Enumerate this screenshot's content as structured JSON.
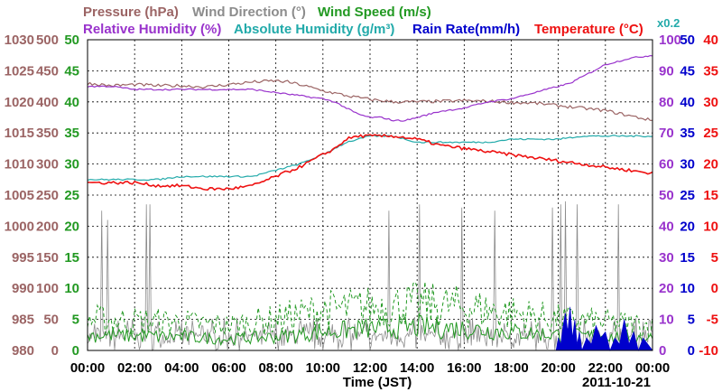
{
  "chart_data": {
    "type": "line",
    "xlabel": "Time (JST)",
    "date_label": "2011-10-21",
    "x_ticks": [
      "00:00",
      "02:00",
      "04:00",
      "06:00",
      "08:00",
      "10:00",
      "12:00",
      "14:00",
      "16:00",
      "18:00",
      "20:00",
      "22:00",
      "00:00"
    ],
    "x_hours": [
      0,
      2,
      4,
      6,
      8,
      10,
      12,
      14,
      16,
      18,
      20,
      22,
      24
    ],
    "grid": true,
    "header_row1": [
      {
        "text": "Pressure (hPa)",
        "color": "#9b6464"
      },
      {
        "text": "Wind Direction (°)",
        "color": "#8c8c8c"
      },
      {
        "text": "Wind Speed (m/s)",
        "color": "#229922"
      }
    ],
    "header_row2": [
      {
        "text": "Relative Humidity (%)",
        "color": "#9933cc"
      },
      {
        "text": "Absolute Humidity (g/m³)",
        "color": "#22aaaa"
      },
      {
        "text": "Rain Rate(mm/h)",
        "color": "#0000cc"
      },
      {
        "text": "Temperature (°C)",
        "color": "#ee1111"
      }
    ],
    "abs_humidity_note": "x0.2",
    "axes": {
      "pressure": {
        "ticks": [
          "1030",
          "1025",
          "1020",
          "1015",
          "1010",
          "1005",
          "1000",
          "995",
          "990",
          "985",
          "980"
        ],
        "range": [
          980,
          1030
        ],
        "color": "#9b6464"
      },
      "wind_dir": {
        "ticks": [
          "500",
          "450",
          "400",
          "350",
          "300",
          "250",
          "200",
          "150",
          "100",
          "50",
          "0"
        ],
        "range": [
          0,
          500
        ],
        "color": "#9b6464"
      },
      "wind_speed": {
        "ticks": [
          "50",
          "45",
          "40",
          "35",
          "30",
          "25",
          "20",
          "15",
          "10",
          "5",
          "0"
        ],
        "range": [
          0,
          50
        ],
        "color": "#229922"
      },
      "humidity": {
        "ticks": [
          "100",
          "90",
          "80",
          "70",
          "60",
          "50",
          "40",
          "30",
          "20",
          "10",
          "0"
        ],
        "range": [
          0,
          100
        ],
        "color": "#9933cc"
      },
      "abs_hum": {
        "ticks": [
          "50",
          "45",
          "40",
          "35",
          "30",
          "25",
          "20",
          "15",
          "10",
          "5",
          "0"
        ],
        "range": [
          0,
          50
        ],
        "color": "#0000cc"
      },
      "temperature": {
        "ticks": [
          "40",
          "35",
          "30",
          "25",
          "20",
          "15",
          "10",
          "5",
          "0",
          "-5",
          "-10"
        ],
        "range": [
          -10,
          40
        ],
        "color": "#ee1111"
      }
    },
    "series": [
      {
        "key": "pressure",
        "axis": "pressure",
        "color": "#9b6464",
        "x": [
          0,
          1,
          2,
          3,
          4,
          5,
          6,
          7,
          8,
          8.5,
          9,
          9.5,
          10,
          11,
          12,
          13,
          14,
          15,
          16,
          17,
          18,
          19,
          20,
          21,
          22,
          23,
          24
        ],
        "y": [
          1023,
          1022.6,
          1022.8,
          1022.6,
          1022.6,
          1022.4,
          1022.8,
          1023.2,
          1023.4,
          1023.2,
          1022.8,
          1022.3,
          1021.8,
          1021,
          1020.4,
          1020,
          1020,
          1020.1,
          1020.2,
          1020.1,
          1019.9,
          1019.8,
          1019.4,
          1019,
          1018.6,
          1017.8,
          1017
        ]
      },
      {
        "key": "rel_humidity",
        "axis": "humidity",
        "color": "#9933cc",
        "x": [
          0,
          1,
          2,
          3,
          4,
          5,
          6,
          7,
          8,
          9,
          10,
          10.5,
          11,
          11.5,
          12,
          12.5,
          13,
          13.5,
          14,
          15,
          16,
          16.5,
          17,
          18,
          18.5,
          19,
          19.5,
          20,
          20.5,
          21,
          21.5,
          22,
          23,
          24
        ],
        "y": [
          85,
          85,
          84,
          84,
          84,
          84,
          84,
          84,
          83,
          82,
          81,
          80,
          78,
          76,
          75,
          75,
          74,
          74,
          75,
          77,
          78,
          79,
          80,
          81,
          82,
          83,
          84,
          85,
          86,
          88,
          90,
          92,
          94,
          95
        ]
      },
      {
        "key": "abs_humidity",
        "axis": "humidity",
        "color": "#22aaaa",
        "x": [
          0,
          1,
          2,
          3,
          4,
          5,
          6,
          7,
          8,
          9,
          10,
          10.5,
          11,
          11.5,
          12,
          12.5,
          13,
          14,
          15,
          16,
          17,
          18,
          19,
          20,
          21,
          22,
          23,
          24
        ],
        "y": [
          55,
          55,
          55,
          55,
          56,
          56,
          56,
          56,
          58,
          60,
          63,
          65,
          67,
          68,
          69,
          69,
          69,
          67,
          67,
          67,
          67,
          68,
          68,
          68,
          69,
          69,
          69,
          69
        ]
      },
      {
        "key": "temperature",
        "axis": "temperature",
        "color": "#ee1111",
        "x": [
          0,
          1,
          2,
          3,
          4,
          5,
          6,
          7,
          8,
          9,
          10,
          10.5,
          11,
          11.5,
          12,
          13,
          14,
          15,
          16,
          17,
          18,
          19,
          20,
          21,
          22,
          23,
          24
        ],
        "y": [
          17,
          17,
          17,
          16.5,
          16.5,
          16,
          16,
          16.5,
          18,
          19.5,
          21.5,
          22.5,
          24,
          24.5,
          24.5,
          24.5,
          24,
          23,
          22.5,
          22,
          21.5,
          21,
          20.5,
          20,
          19.5,
          19,
          18.5
        ]
      },
      {
        "key": "wind_direction",
        "axis": "wind_dir",
        "color": "#8c8c8c",
        "dense": true,
        "base": 20,
        "spikes": [
          {
            "x": 0.6,
            "y": 225
          },
          {
            "x": 0.85,
            "y": 210
          },
          {
            "x": 2.5,
            "y": 235
          },
          {
            "x": 2.65,
            "y": 235
          },
          {
            "x": 12.8,
            "y": 225
          },
          {
            "x": 14.1,
            "y": 235
          },
          {
            "x": 15.9,
            "y": 230
          },
          {
            "x": 17.3,
            "y": 225
          },
          {
            "x": 19.75,
            "y": 230
          },
          {
            "x": 20.1,
            "y": 235
          },
          {
            "x": 20.3,
            "y": 240
          },
          {
            "x": 20.8,
            "y": 235
          },
          {
            "x": 22.55,
            "y": 235
          }
        ]
      },
      {
        "key": "wind_speed",
        "axis": "wind_speed",
        "color": "#229922",
        "dense": true,
        "profile_x": [
          0,
          4,
          6,
          8,
          10,
          12,
          14,
          16,
          18,
          20,
          22,
          24
        ],
        "mean_y": [
          2.5,
          2.2,
          1.8,
          2.2,
          3,
          3.5,
          3.8,
          3.5,
          3,
          2.5,
          2.2,
          2
        ]
      },
      {
        "key": "wind_gust",
        "axis": "wind_speed",
        "color": "#229922",
        "dashed": true,
        "dense": true,
        "profile_x": [
          0,
          4,
          6,
          8,
          10,
          12,
          14,
          16,
          18,
          20,
          22,
          24
        ],
        "mean_y": [
          5,
          4.5,
          4,
          5,
          6.5,
          7,
          7.5,
          7,
          6,
          5,
          4.5,
          4
        ]
      },
      {
        "key": "rain_rate",
        "axis": "abs_hum",
        "color": "#0000cc",
        "fill": true,
        "x": [
          19.9,
          20.0,
          20.1,
          20.2,
          20.3,
          20.4,
          20.5,
          20.6,
          20.7,
          20.8,
          20.9,
          21.0,
          21.2,
          21.4,
          21.6,
          21.8,
          22.0,
          22.2,
          22.4,
          22.6,
          22.8,
          23.0,
          23.2,
          23.4,
          23.6,
          23.8,
          24.0
        ],
        "y": [
          0,
          2,
          1,
          4,
          6,
          3,
          7,
          2,
          5,
          1,
          3,
          0,
          2,
          1,
          4,
          2,
          3,
          0,
          2,
          1,
          5,
          1,
          3,
          0,
          2,
          1,
          0
        ]
      }
    ]
  }
}
